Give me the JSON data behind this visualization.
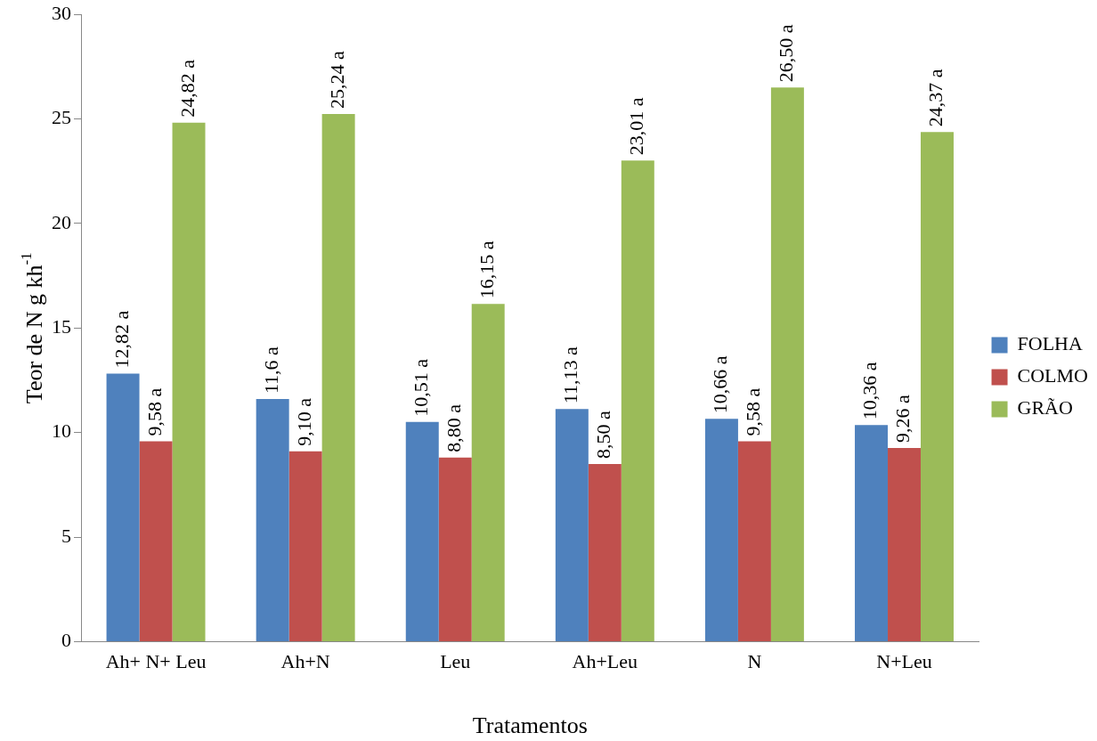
{
  "chart_data": {
    "type": "bar",
    "xlabel": "Tratamentos",
    "ylabel": "Teor de N g kh$^{-1}$",
    "categories": [
      "Ah+ N+ Leu",
      "Ah+N",
      "Leu",
      "Ah+Leu",
      "N",
      "N+Leu"
    ],
    "series": [
      {
        "name": "FOLHA",
        "color": "#4f81bd",
        "values": [
          12.82,
          11.6,
          10.51,
          11.13,
          10.66,
          10.36
        ],
        "value_labels": [
          "12,82 a",
          "11,6 a",
          "10,51 a",
          "11,13 a",
          "10,66 a",
          "10,36 a"
        ]
      },
      {
        "name": "COLMO",
        "color": "#c0504d",
        "values": [
          9.58,
          9.1,
          8.8,
          8.5,
          9.58,
          9.26
        ],
        "value_labels": [
          "9,58 a",
          "9,10 a",
          "8,80 a",
          "8,50 a",
          "9,58 a",
          "9,26 a"
        ]
      },
      {
        "name": "GRÃO",
        "color": "#9bbb59",
        "values": [
          24.82,
          25.24,
          16.15,
          23.01,
          26.5,
          24.37
        ],
        "value_labels": [
          "24,82 a",
          "25,24 a",
          "16,15 a",
          "23,01 a",
          "26,50 a",
          "24,37 a"
        ]
      }
    ],
    "ylim": [
      0,
      30
    ],
    "yticks": [
      0,
      5,
      10,
      15,
      20,
      25,
      30
    ],
    "grid": false,
    "legend": "right"
  }
}
